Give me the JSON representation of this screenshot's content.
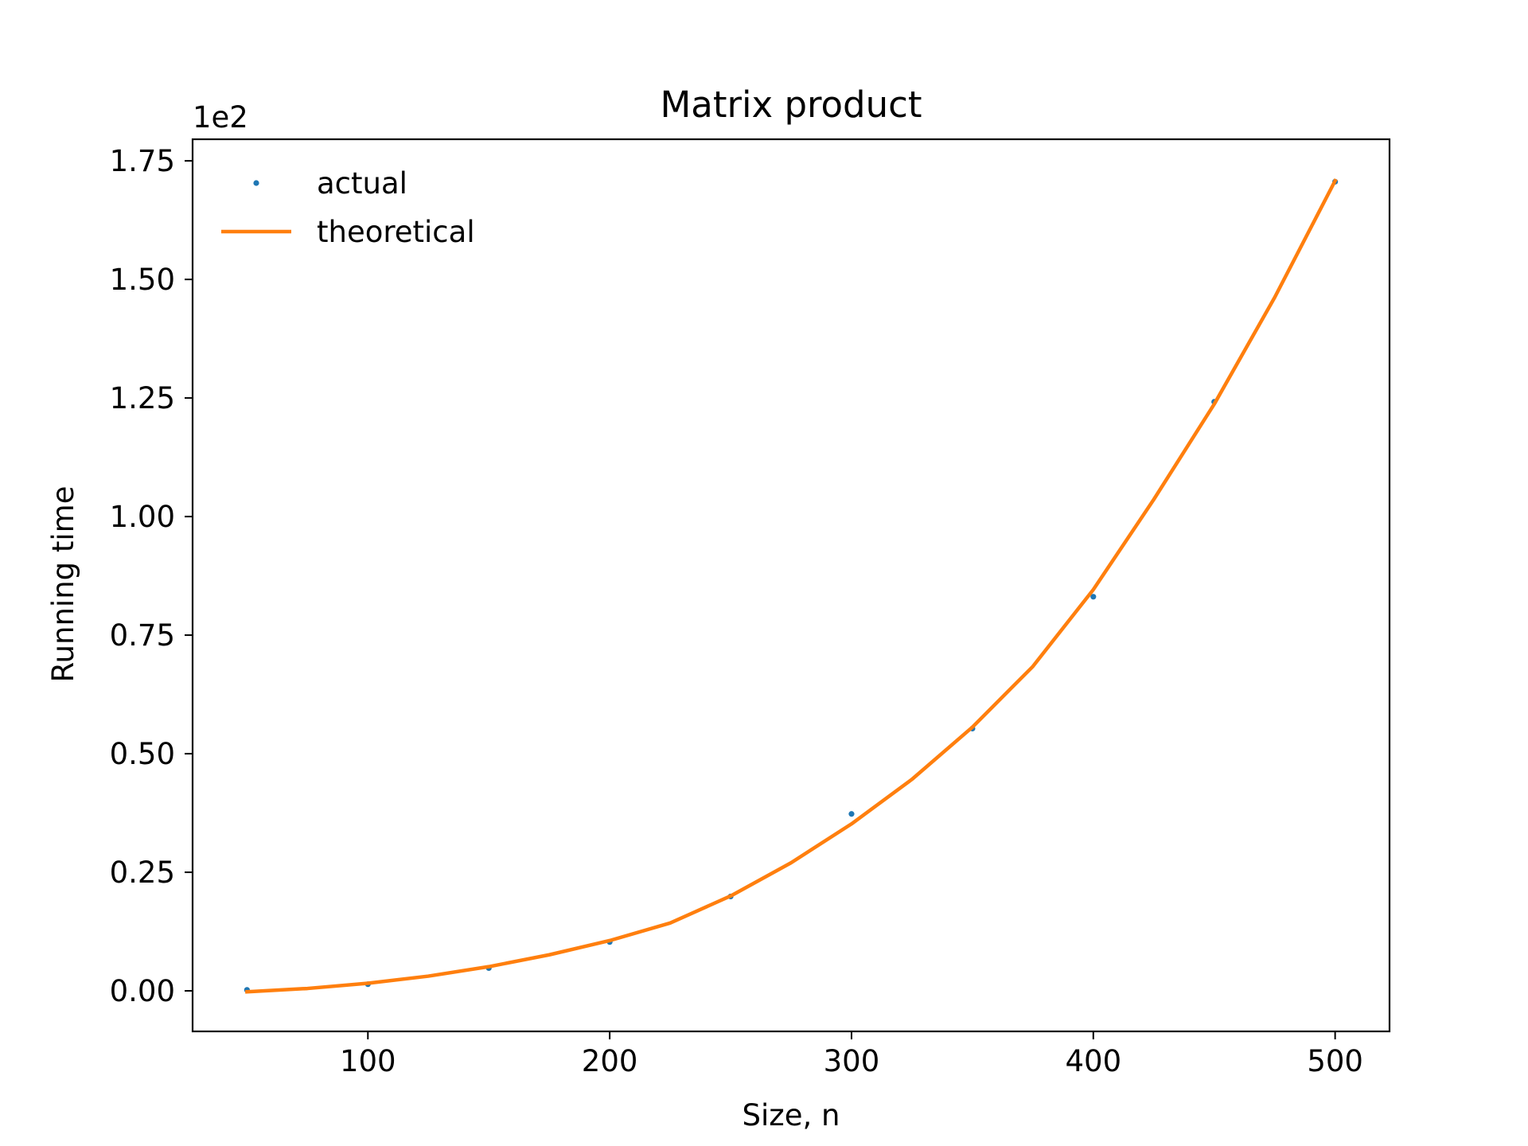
{
  "chart_data": {
    "type": "scatter",
    "title": "Matrix product",
    "xlabel": "Size, n",
    "ylabel": "Running time",
    "y_offset_label": "1e2",
    "xlim": [
      27.5,
      522.5
    ],
    "ylim": [
      -0.0855,
      1.7955
    ],
    "x_scale": "linear",
    "y_scale": "linear",
    "x_ticks": [
      100,
      200,
      300,
      400,
      500
    ],
    "x_tick_labels": [
      "100",
      "200",
      "300",
      "400",
      "500"
    ],
    "y_ticks": [
      0.0,
      0.25,
      0.5,
      0.75,
      1.0,
      1.25,
      1.5,
      1.75
    ],
    "y_tick_labels": [
      "0.00",
      "0.25",
      "0.50",
      "0.75",
      "1.00",
      "1.25",
      "1.50",
      "1.75"
    ],
    "grid": false,
    "legend_position": "top-left",
    "series": [
      {
        "name": "actual",
        "kind": "points",
        "color": "#1f77b4",
        "x": [
          50,
          100,
          150,
          200,
          250,
          300,
          350,
          400,
          450,
          500
        ],
        "y": [
          0.002,
          0.014,
          0.048,
          0.103,
          0.199,
          0.373,
          0.553,
          0.831,
          1.242,
          1.706
        ]
      },
      {
        "name": "theoretical",
        "kind": "line",
        "color": "#ff7f0e",
        "x": [
          50,
          75,
          100,
          125,
          150,
          175,
          200,
          225,
          250,
          275,
          300,
          325,
          350,
          375,
          400,
          425,
          450,
          475,
          500
        ],
        "y": [
          -0.002,
          0.005,
          0.016,
          0.031,
          0.051,
          0.076,
          0.106,
          0.143,
          0.2,
          0.27,
          0.352,
          0.446,
          0.556,
          0.684,
          0.846,
          1.036,
          1.237,
          1.462,
          1.708
        ]
      }
    ]
  }
}
